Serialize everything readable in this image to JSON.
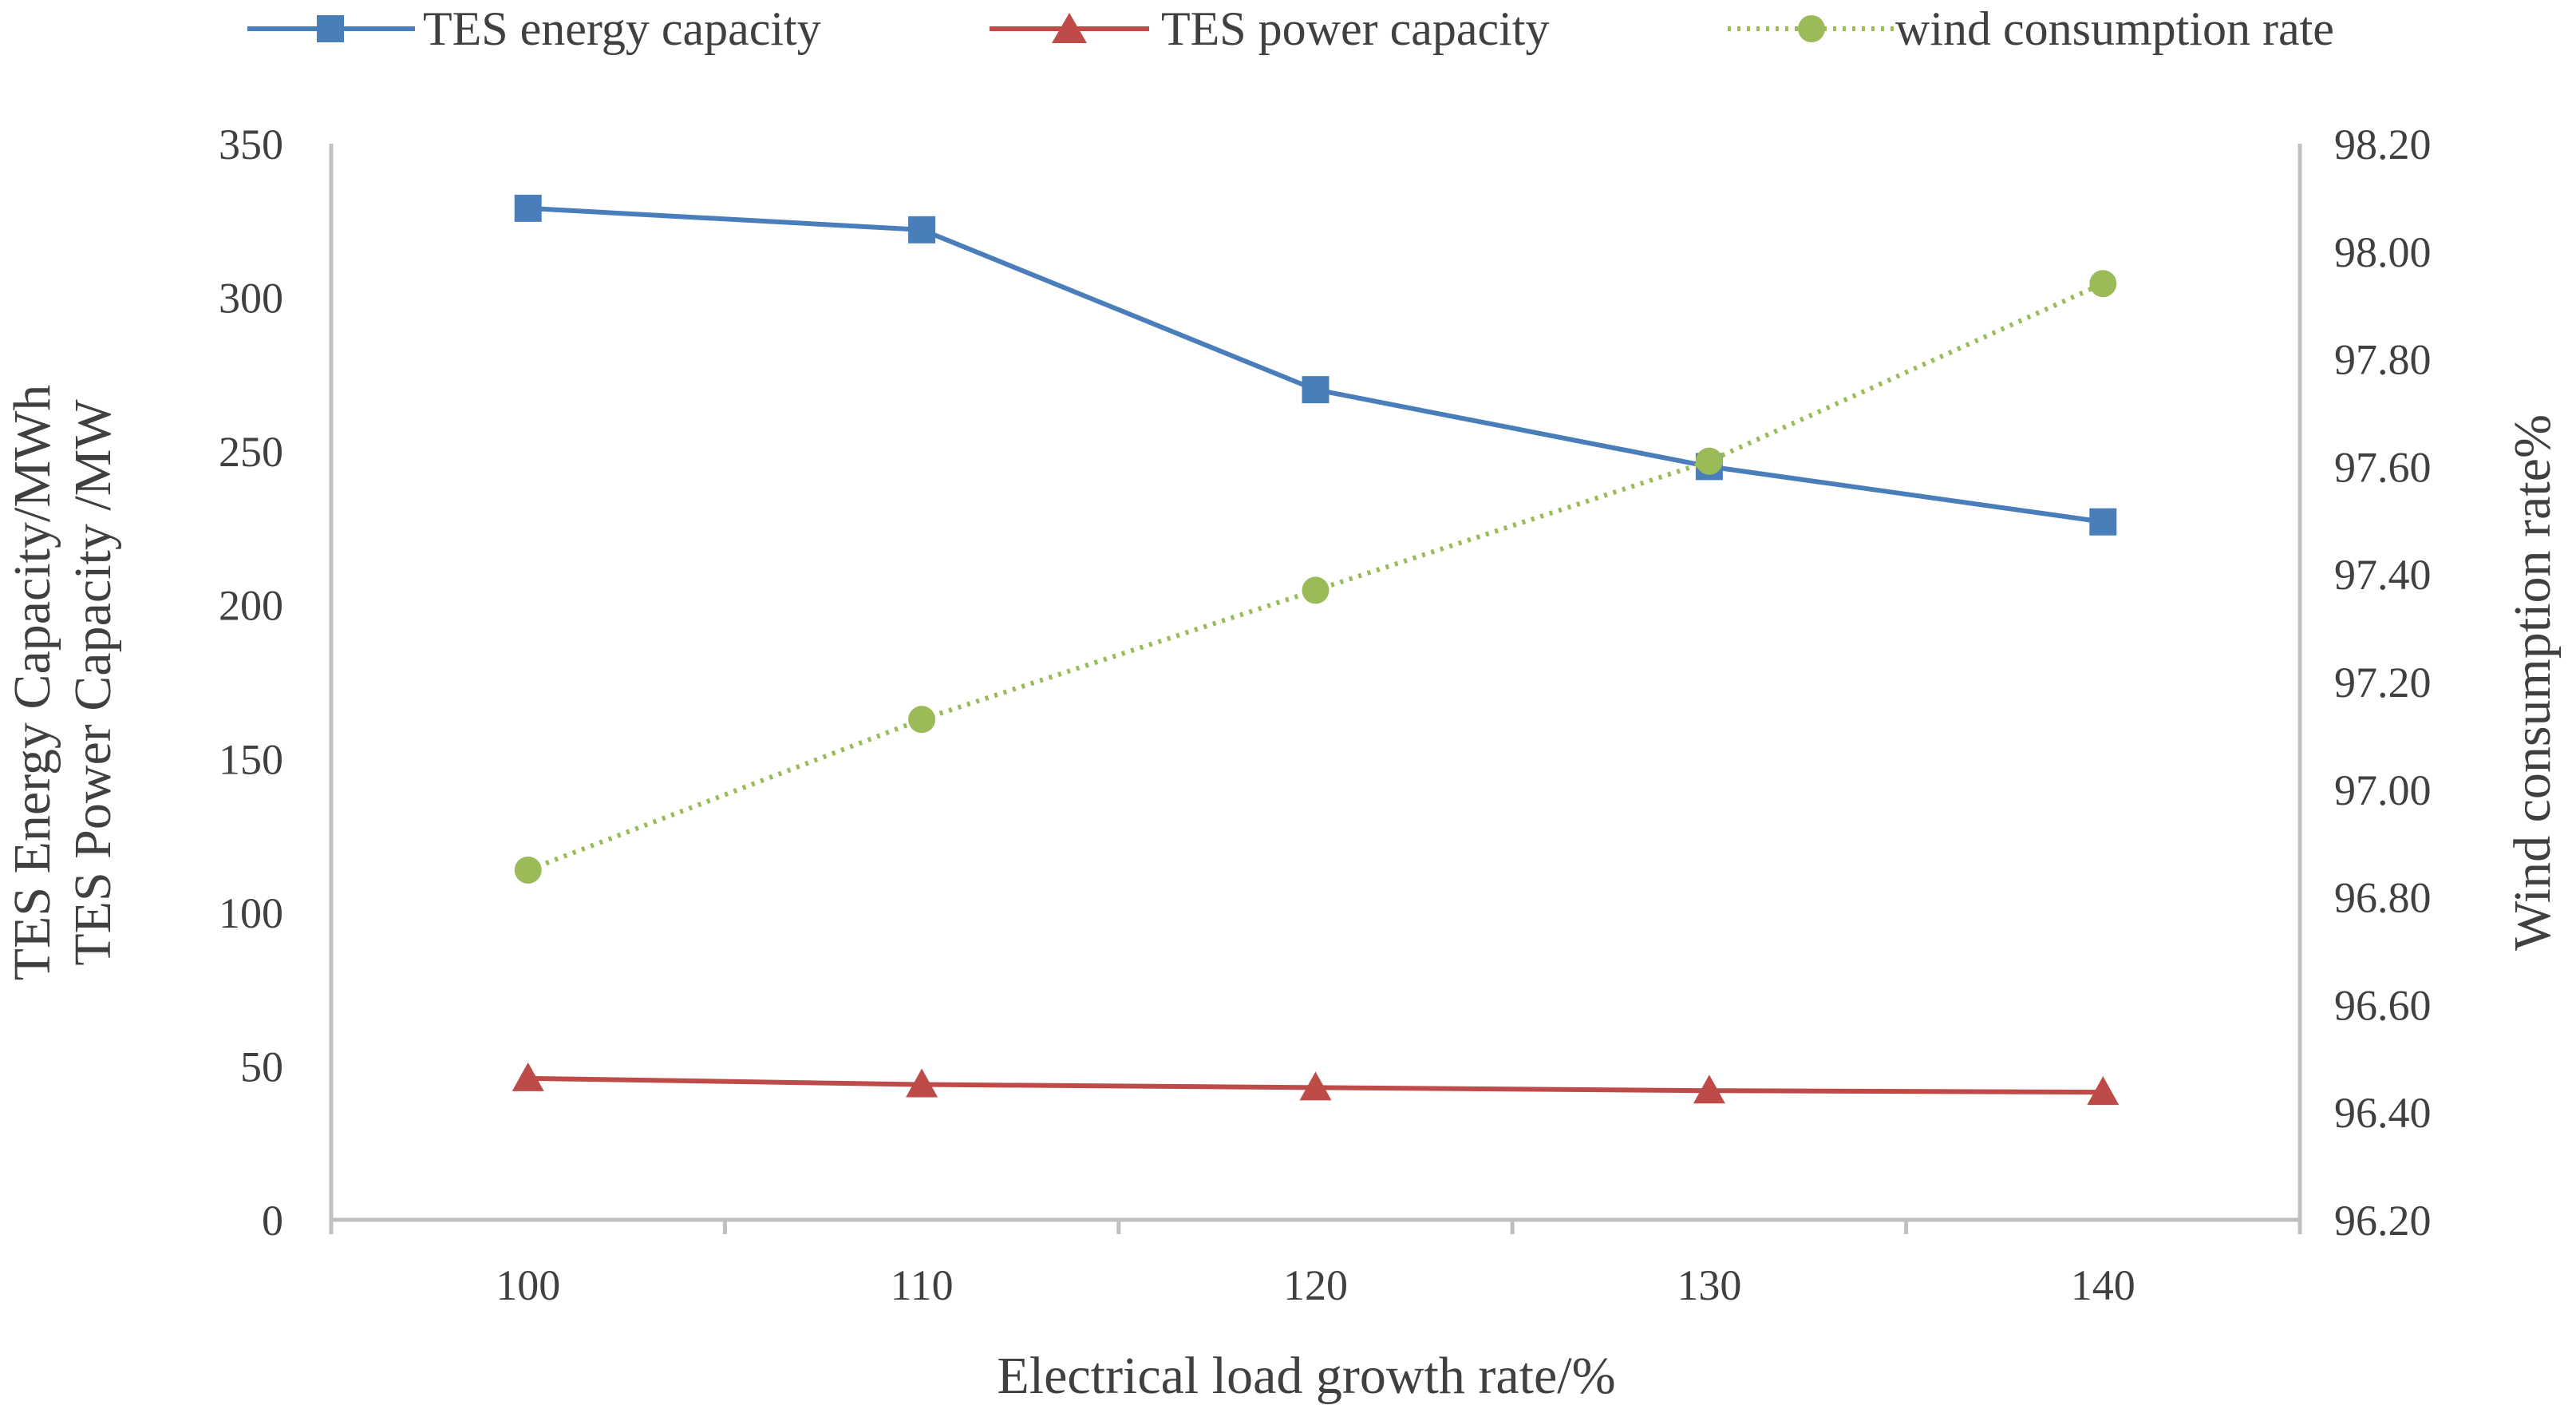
{
  "chart_data": {
    "type": "line",
    "title": "",
    "x": [
      100,
      110,
      120,
      130,
      140
    ],
    "x_tick_labels": [
      "100",
      "110",
      "120",
      "130",
      "140"
    ],
    "xlabel": "Electrical load growth rate/%",
    "ylabel_left": [
      "TES Energy Capacity/MWh",
      "TES Power Capacity /MW"
    ],
    "ylabel_right": "Wind consumption rate%",
    "ylim_left": [
      0,
      350
    ],
    "ylim_right": [
      96.2,
      98.2
    ],
    "y_left_tick_labels": [
      "0",
      "50",
      "100",
      "150",
      "200",
      "250",
      "300",
      "350"
    ],
    "y_right_tick_labels": [
      "96.20",
      "96.40",
      "96.60",
      "96.80",
      "97.00",
      "97.20",
      "97.40",
      "97.60",
      "97.80",
      "98.00",
      "98.20"
    ],
    "series": [
      {
        "name": "TES energy capacity",
        "axis": "left",
        "marker": "square",
        "style": "solid",
        "color": "#4a7ebb",
        "values": [
          329,
          322,
          270,
          245,
          227
        ]
      },
      {
        "name": "TES power capacity",
        "axis": "left",
        "marker": "triangle",
        "style": "solid",
        "color": "#be4b48",
        "values": [
          46,
          44,
          43,
          42,
          41.5
        ]
      },
      {
        "name": "wind consumption rate",
        "axis": "right",
        "marker": "circle",
        "style": "dotted",
        "color": "#9bbb59",
        "values": [
          96.85,
          97.13,
          97.37,
          97.61,
          97.94
        ]
      }
    ],
    "legend_position": "top",
    "grid": false
  }
}
